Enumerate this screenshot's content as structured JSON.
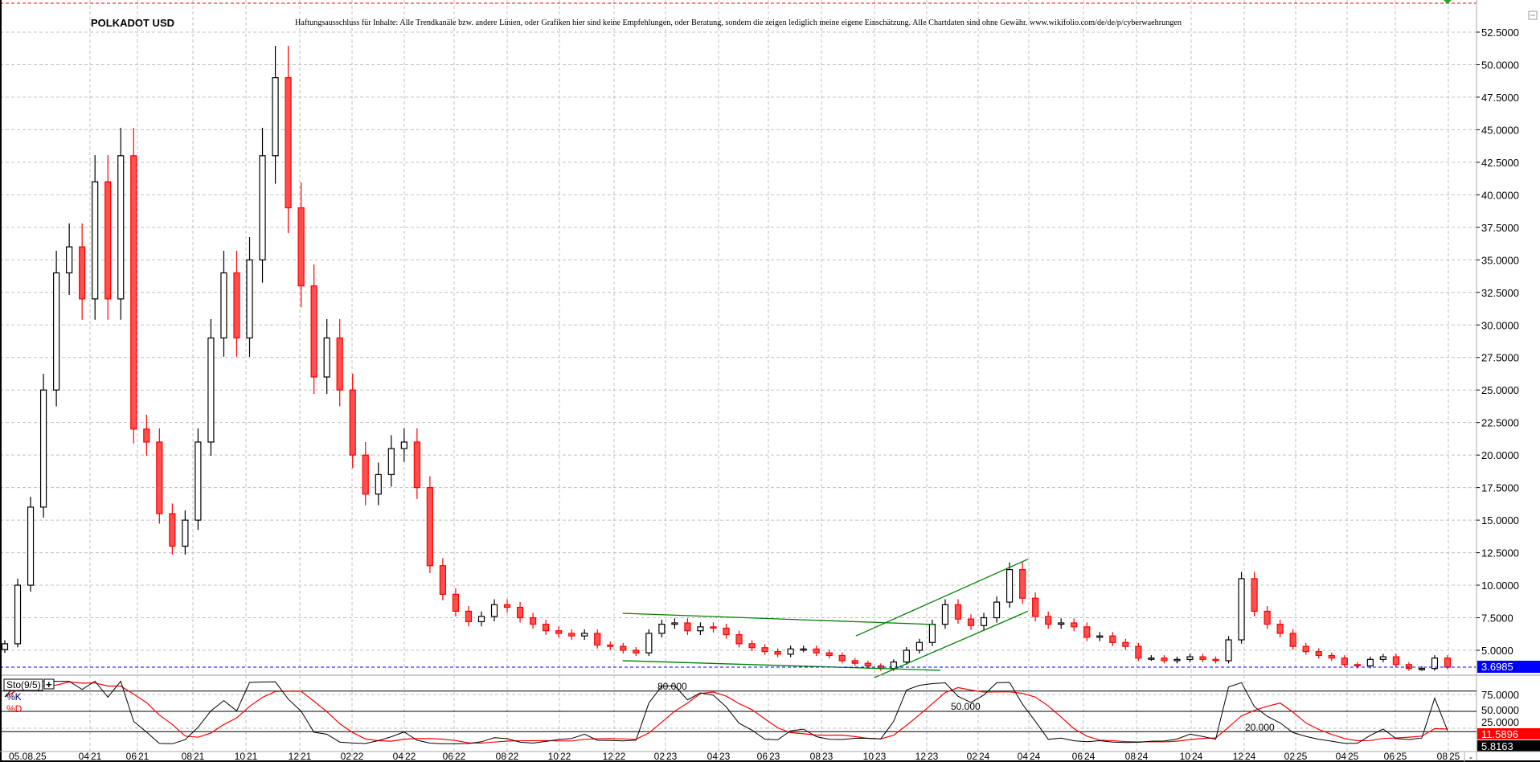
{
  "header": {
    "title": "POLKADOT USD",
    "disclaimer": "Haftungsausschluss für Inhalte: Alle Trendkanäle bzw. andere Linien, oder Grafiken hier sind keine Empfehlungen, oder Beratung, sondern die zeigen lediglich meine eigene Einschätzung. Alle Chartdaten sind ohne Gewähr.  www.wikifolio.com/de/de/p/cyberwaehrungen"
  },
  "chart_data": {
    "type": "candlestick",
    "title": "POLKADOT USD",
    "ylim": [
      2.95,
      55
    ],
    "y_ticks": [
      "5.0000",
      "7.5000",
      "10.0000",
      "12.5000",
      "15.0000",
      "17.5000",
      "20.0000",
      "22.5000",
      "25.0000",
      "27.5000",
      "30.0000",
      "32.5000",
      "35.0000",
      "37.5000",
      "40.0000",
      "42.5000",
      "45.0000",
      "47.5000",
      "50.0000",
      "52.5000"
    ],
    "x_first_label": "05.08.25",
    "x_tick_labels": [
      "04 21",
      "06 21",
      "08 21",
      "10 21",
      "12 21",
      "02 22",
      "04 22",
      "06 22",
      "08 22",
      "10 22",
      "12 22",
      "02 23",
      "04 23",
      "06 23",
      "08 23",
      "10 23",
      "12 23",
      "02 24",
      "04 24",
      "06 24",
      "08 24",
      "10 24",
      "12 24",
      "02 25",
      "04 25",
      "06 25",
      "08 25"
    ],
    "grid": true,
    "series": [
      {
        "month": "2020-12",
        "closes": [
          5.5,
          10
        ]
      },
      {
        "month": "2021-01",
        "closes": [
          16,
          25
        ]
      },
      {
        "month": "2021-02",
        "closes": [
          34,
          36
        ]
      },
      {
        "month": "2021-03",
        "closes": [
          32,
          41
        ]
      },
      {
        "month": "2021-04",
        "closes": [
          32,
          43
        ]
      },
      {
        "month": "2021-05",
        "closes": [
          22,
          21
        ]
      },
      {
        "month": "2021-06",
        "closes": [
          15.5,
          13
        ]
      },
      {
        "month": "2021-07",
        "closes": [
          15,
          21
        ]
      },
      {
        "month": "2021-08",
        "closes": [
          29,
          34
        ]
      },
      {
        "month": "2021-09",
        "closes": [
          29,
          35
        ]
      },
      {
        "month": "2021-10",
        "closes": [
          43,
          49
        ]
      },
      {
        "month": "2021-11",
        "closes": [
          39,
          33
        ]
      },
      {
        "month": "2021-12",
        "closes": [
          26,
          29
        ]
      },
      {
        "month": "2022-01",
        "closes": [
          25,
          20
        ]
      },
      {
        "month": "2022-02",
        "closes": [
          17,
          18.5
        ]
      },
      {
        "month": "2022-03",
        "closes": [
          20.5,
          21
        ]
      },
      {
        "month": "2022-04",
        "closes": [
          17.5,
          11.5
        ]
      },
      {
        "month": "2022-05",
        "closes": [
          9.3,
          8
        ]
      },
      {
        "month": "2022-06",
        "closes": [
          7.2,
          7.6
        ]
      },
      {
        "month": "2022-07",
        "closes": [
          8.5,
          8.3
        ]
      },
      {
        "month": "2022-08",
        "closes": [
          7.5,
          7
        ]
      },
      {
        "month": "2022-09",
        "closes": [
          6.5,
          6.3
        ]
      },
      {
        "month": "2022-10",
        "closes": [
          6.1,
          6.3
        ]
      },
      {
        "month": "2022-11",
        "closes": [
          5.4,
          5.3
        ]
      },
      {
        "month": "2022-12",
        "closes": [
          5,
          4.8
        ]
      },
      {
        "month": "2023-01",
        "closes": [
          6.3,
          7
        ]
      },
      {
        "month": "2023-02",
        "closes": [
          7.1,
          6.5
        ]
      },
      {
        "month": "2023-03",
        "closes": [
          6.8,
          6.7
        ]
      },
      {
        "month": "2023-04",
        "closes": [
          6.2,
          5.5
        ]
      },
      {
        "month": "2023-05",
        "closes": [
          5.2,
          4.9
        ]
      },
      {
        "month": "2023-06",
        "closes": [
          4.7,
          5.1
        ]
      },
      {
        "month": "2023-07",
        "closes": [
          5.1,
          4.8
        ]
      },
      {
        "month": "2023-08",
        "closes": [
          4.6,
          4.2
        ]
      },
      {
        "month": "2023-09",
        "closes": [
          4.0,
          3.8
        ]
      },
      {
        "month": "2023-10",
        "closes": [
          3.6,
          4.1
        ]
      },
      {
        "month": "2023-11",
        "closes": [
          5,
          5.6
        ]
      },
      {
        "month": "2023-12",
        "closes": [
          7,
          8.5
        ]
      },
      {
        "month": "2024-01",
        "closes": [
          7.4,
          6.9
        ]
      },
      {
        "month": "2024-02",
        "closes": [
          7.5,
          8.7
        ]
      },
      {
        "month": "2024-03",
        "closes": [
          11.2,
          9
        ]
      },
      {
        "month": "2024-04",
        "closes": [
          7.6,
          7
        ]
      },
      {
        "month": "2024-05",
        "closes": [
          7.1,
          6.8
        ]
      },
      {
        "month": "2024-06",
        "closes": [
          6,
          6.1
        ]
      },
      {
        "month": "2024-07",
        "closes": [
          5.6,
          5.3
        ]
      },
      {
        "month": "2024-08",
        "closes": [
          4.4,
          4.4
        ]
      },
      {
        "month": "2024-09",
        "closes": [
          4.2,
          4.3
        ]
      },
      {
        "month": "2024-10",
        "closes": [
          4.5,
          4.3
        ]
      },
      {
        "month": "2024-11",
        "closes": [
          4.2,
          5.8
        ]
      },
      {
        "month": "2024-12",
        "closes": [
          10.5,
          8
        ]
      },
      {
        "month": "2025-01",
        "closes": [
          7,
          6.3
        ]
      },
      {
        "month": "2025-02",
        "closes": [
          5.3,
          4.9
        ]
      },
      {
        "month": "2025-03",
        "closes": [
          4.6,
          4.4
        ]
      },
      {
        "month": "2025-04",
        "closes": [
          3.9,
          3.8
        ]
      },
      {
        "month": "2025-05",
        "closes": [
          4.3,
          4.5
        ]
      },
      {
        "month": "2025-06",
        "closes": [
          3.9,
          3.6
        ]
      },
      {
        "month": "2025-07",
        "closes": [
          3.6,
          4.4
        ]
      },
      {
        "month": "2025-08",
        "closes": [
          3.6985
        ]
      }
    ],
    "last_price": "3.6985",
    "trendlines": [
      {
        "from": [
          "2022-12-11",
          7.84
        ],
        "to": [
          "2023-12-10",
          6.98
        ]
      },
      {
        "from": [
          "2022-12-11",
          4.2
        ],
        "to": [
          "2023-12-17",
          3.46
        ]
      },
      {
        "from": [
          "2023-09-10",
          6.1
        ],
        "to": [
          "2024-03-30",
          12.0
        ]
      },
      {
        "from": [
          "2023-10-01",
          2.9
        ],
        "to": [
          "2024-03-30",
          8.0
        ]
      }
    ],
    "indicator": {
      "name": "Sto(9/5)",
      "k_label": "%K",
      "d_label": "%D",
      "level_labels": [
        "80.000",
        "50.000",
        "20.000"
      ],
      "levels": [
        80,
        50,
        20
      ],
      "axis_ticks": [
        "75.0000",
        "50.0000",
        "25.0000"
      ],
      "d_last": "11.5896",
      "k_last": "5.8163"
    },
    "colors": {
      "up_candle": "#000000",
      "down_candle": "#ff0000",
      "trendline": "#008000",
      "last_price_line": "#0000ff",
      "k_line": "#000000",
      "d_line": "#ff0000",
      "grid": "#c0c0c0"
    }
  },
  "footer": {
    "scroll_marker": "-"
  }
}
